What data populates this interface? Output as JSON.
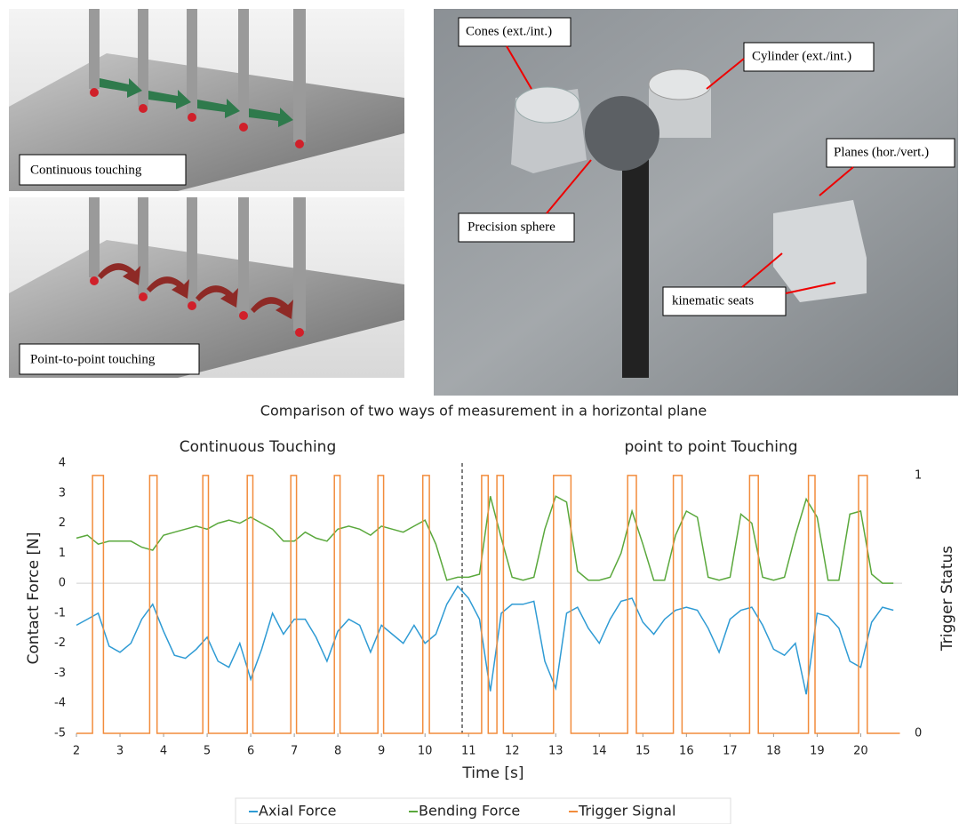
{
  "images": {
    "probe_panel": {
      "top_label": "Continuous touching",
      "bottom_label": "Point-to-point touching"
    },
    "artefact_photo": {
      "labels": [
        "Cones (ext./int.)",
        "Cylinder (ext./int.)",
        "Planes (hor./vert.)",
        "Precision sphere",
        "kinematic seats"
      ]
    }
  },
  "chart_data": {
    "type": "line",
    "title": "Comparison of two ways of measurement in a horizontal plane",
    "annotations": [
      "Continuous Touching",
      "point to point Touching"
    ],
    "xlabel": "Time [s]",
    "ylabel": "Contact Force [N]",
    "y2label": "Trigger Status",
    "xlim": [
      2,
      20.95
    ],
    "xticks": [
      2,
      3,
      4,
      5,
      6,
      7,
      8,
      9,
      10,
      11,
      12,
      13,
      14,
      15,
      16,
      17,
      18,
      19,
      20
    ],
    "ylim": [
      -5,
      4
    ],
    "yticks": [
      -5,
      -4,
      -3,
      -2,
      -1,
      0,
      1,
      2,
      3,
      4
    ],
    "y2lim": [
      0,
      1.048
    ],
    "y2ticks": [
      0,
      1
    ],
    "grid": false,
    "legend": "bottom",
    "x": [
      2,
      2.25,
      2.5,
      2.75,
      3,
      3.25,
      3.5,
      3.75,
      4,
      4.25,
      4.5,
      4.75,
      5,
      5.25,
      5.5,
      5.75,
      6,
      6.25,
      6.5,
      6.75,
      7,
      7.25,
      7.5,
      7.75,
      8,
      8.25,
      8.5,
      8.75,
      9,
      9.25,
      9.5,
      9.75,
      10,
      10.25,
      10.5,
      10.75,
      11,
      11.25,
      11.5,
      11.75,
      12,
      12.25,
      12.5,
      12.75,
      13,
      13.25,
      13.5,
      13.75,
      14,
      14.25,
      14.5,
      14.75,
      15,
      15.25,
      15.5,
      15.75,
      16,
      16.25,
      16.5,
      16.75,
      17,
      17.25,
      17.5,
      17.75,
      18,
      18.25,
      18.5,
      18.75,
      19,
      19.25,
      19.5,
      19.75,
      20,
      20.25,
      20.5,
      20.75
    ],
    "series": [
      {
        "name": "Axial Force",
        "color": "#2f9bd4",
        "values": [
          -1.4,
          -1.2,
          -1.0,
          -2.1,
          -2.3,
          -2.0,
          -1.2,
          -0.7,
          -1.6,
          -2.4,
          -2.5,
          -2.2,
          -1.8,
          -2.6,
          -2.8,
          -2.0,
          -3.2,
          -2.2,
          -1.0,
          -1.7,
          -1.2,
          -1.2,
          -1.8,
          -2.6,
          -1.6,
          -1.2,
          -1.4,
          -2.3,
          -1.4,
          -1.7,
          -2.0,
          -1.4,
          -2.0,
          -1.7,
          -0.7,
          -0.1,
          -0.5,
          -1.2,
          -3.6,
          -1.0,
          -0.7,
          -0.7,
          -0.6,
          -2.6,
          -3.5,
          -1.0,
          -0.8,
          -1.5,
          -2.0,
          -1.2,
          -0.6,
          -0.5,
          -1.3,
          -1.7,
          -1.2,
          -0.9,
          -0.8,
          -0.9,
          -1.5,
          -2.3,
          -1.2,
          -0.9,
          -0.8,
          -1.4,
          -2.2,
          -2.4,
          -2.0,
          -3.7,
          -1.0,
          -1.1,
          -1.5,
          -2.6,
          -2.8,
          -1.3,
          -0.8,
          -0.9
        ]
      },
      {
        "name": "Bending Force",
        "color": "#5aa83c",
        "values": [
          1.5,
          1.6,
          1.3,
          1.4,
          1.4,
          1.4,
          1.2,
          1.1,
          1.6,
          1.7,
          1.8,
          1.9,
          1.8,
          2.0,
          2.1,
          2.0,
          2.2,
          2.0,
          1.8,
          1.4,
          1.4,
          1.7,
          1.5,
          1.4,
          1.8,
          1.9,
          1.8,
          1.6,
          1.9,
          1.8,
          1.7,
          1.9,
          2.1,
          1.3,
          0.1,
          0.2,
          0.2,
          0.3,
          2.9,
          1.5,
          0.2,
          0.1,
          0.2,
          1.8,
          2.9,
          2.7,
          0.4,
          0.1,
          0.1,
          0.2,
          1.0,
          2.4,
          1.3,
          0.1,
          0.1,
          1.6,
          2.4,
          2.2,
          0.2,
          0.1,
          0.2,
          2.3,
          2.0,
          0.2,
          0.1,
          0.2,
          1.6,
          2.8,
          2.2,
          0.1,
          0.1,
          2.3,
          2.4,
          0.3,
          0.0,
          0.0
        ]
      },
      {
        "name": "Trigger Signal",
        "color": "#f28c3c",
        "axis": "y2",
        "x": [
          2,
          2.37,
          2.37,
          2.62,
          2.62,
          3.68,
          3.68,
          3.85,
          3.85,
          4.9,
          4.9,
          5.03,
          5.03,
          5.92,
          5.92,
          6.05,
          6.05,
          6.92,
          6.92,
          7.05,
          7.05,
          7.92,
          7.92,
          8.05,
          8.05,
          8.92,
          8.92,
          9.05,
          9.05,
          9.95,
          9.95,
          10.1,
          10.1,
          11.3,
          11.3,
          11.45,
          11.45,
          11.65,
          11.65,
          11.8,
          11.8,
          12.95,
          12.95,
          13.35,
          13.35,
          14.65,
          14.65,
          14.85,
          14.85,
          15.7,
          15.7,
          15.9,
          15.9,
          17.45,
          17.45,
          17.65,
          17.65,
          18.8,
          18.8,
          18.95,
          18.95,
          19.95,
          19.95,
          20.15,
          20.15,
          20.9
        ],
        "values": [
          0,
          0,
          1,
          1,
          0,
          0,
          1,
          1,
          0,
          0,
          1,
          1,
          0,
          0,
          1,
          1,
          0,
          0,
          1,
          1,
          0,
          0,
          1,
          1,
          0,
          0,
          1,
          1,
          0,
          0,
          1,
          1,
          0,
          0,
          1,
          1,
          0,
          0,
          1,
          1,
          0,
          0,
          1,
          1,
          0,
          0,
          1,
          1,
          0,
          0,
          1,
          1,
          0,
          0,
          1,
          1,
          0,
          0,
          1,
          1,
          0,
          0,
          1,
          1,
          0,
          0
        ]
      }
    ]
  }
}
